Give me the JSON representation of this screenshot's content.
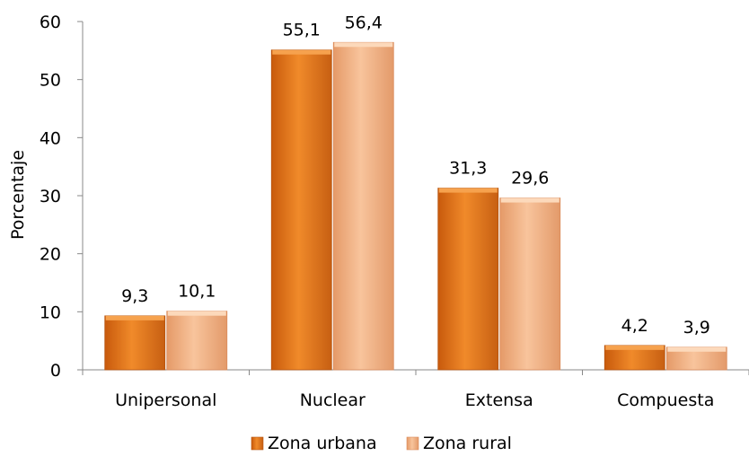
{
  "chart_data": {
    "type": "bar",
    "categories": [
      "Unipersonal",
      "Nuclear",
      "Extensa",
      "Compuesta"
    ],
    "series": [
      {
        "name": "Zona urbana",
        "values": [
          9.3,
          55.1,
          31.3,
          4.2
        ],
        "labels": [
          "9,3",
          "55,1",
          "31,3",
          "4,2"
        ],
        "color": "#E2741A"
      },
      {
        "name": "Zona rural",
        "values": [
          10.1,
          56.4,
          29.6,
          3.9
        ],
        "labels": [
          "10,1",
          "56,4",
          "29,6",
          "3,9"
        ],
        "color": "#F4B183"
      }
    ],
    "ylabel": "Porcentaje",
    "xlabel": "",
    "ylim": [
      0,
      60
    ],
    "yticks": [
      0,
      10,
      20,
      30,
      40,
      50,
      60
    ],
    "grid": false,
    "legend_position": "bottom"
  }
}
